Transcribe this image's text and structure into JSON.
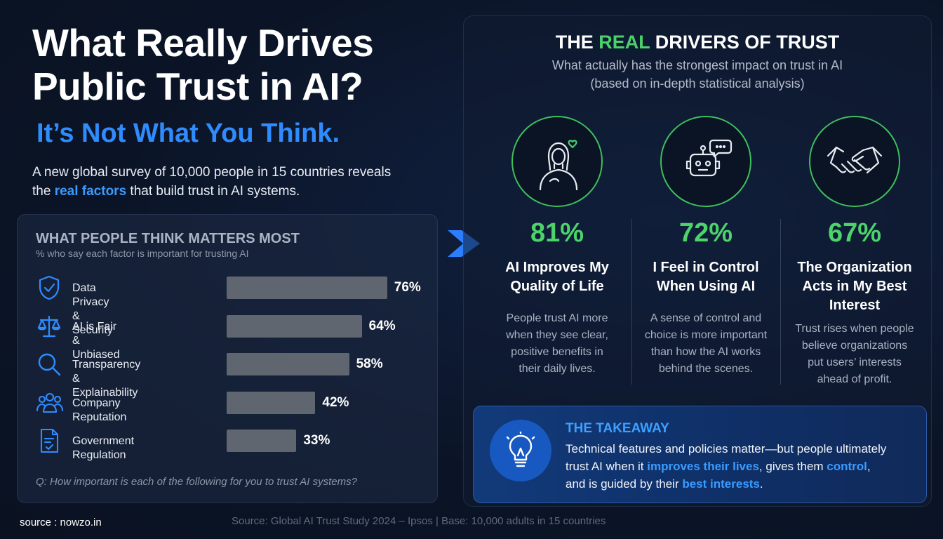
{
  "header": {
    "title_line1": "What Really Drives",
    "title_line2": "Public Trust in AI?",
    "subtitle": "It’s Not What You Think.",
    "intro_part1": "A new global survey of 10,000 people in 15 countries reveals",
    "intro_part2_pre": "the ",
    "intro_highlight": "real factors",
    "intro_part2_post": " that build trust in AI systems."
  },
  "perception_panel": {
    "title": "WHAT PEOPLE THINK MATTERS MOST",
    "description": "% who say each factor is important for trusting AI",
    "question": "Q: How important is each of the following for you to trust AI systems?"
  },
  "chart_data": {
    "type": "bar",
    "orientation": "horizontal",
    "categories": [
      "Data Privacy & Security",
      "AI is Fair & Unbiased",
      "Transparency & Explainability",
      "Company Reputation",
      "Government Regulation"
    ],
    "values": [
      76,
      64,
      58,
      42,
      33
    ],
    "value_labels": [
      "76%",
      "64%",
      "58%",
      "42%",
      "33%"
    ],
    "icons": [
      "shield-check-icon",
      "scales-icon",
      "magnifier-icon",
      "people-icon",
      "document-check-icon"
    ],
    "bar_color": "#5f6670",
    "xlim": [
      0,
      100
    ]
  },
  "drivers_panel": {
    "title_pre": "THE ",
    "title_highlight": "REAL",
    "title_post": " DRIVERS OF TRUST",
    "subtitle_line1": "What actually has the strongest impact on trust in AI",
    "subtitle_line2": "(based on in-depth statistical analysis)",
    "accent_color": "#4bd06a",
    "drivers": [
      {
        "stat": "81%",
        "label_line1": "AI Improves My",
        "label_line2": "Quality of Life",
        "label_line3": "",
        "desc": [
          "People trust AI more",
          "when they see clear,",
          "positive benefits in",
          "their daily lives."
        ],
        "icon": "person-heart-icon"
      },
      {
        "stat": "72%",
        "label_line1": "I Feel in Control",
        "label_line2": "When Using AI",
        "label_line3": "",
        "desc": [
          "A sense of control and",
          "choice is more important",
          "than how the AI works",
          "behind the scenes."
        ],
        "icon": "robot-chat-icon"
      },
      {
        "stat": "67%",
        "label_line1": "The Organization",
        "label_line2": "Acts in My Best",
        "label_line3": "Interest",
        "desc": [
          "Trust rises when people",
          "believe organizations",
          "put users’ interests",
          "ahead of profit."
        ],
        "icon": "handshake-icon"
      }
    ]
  },
  "takeaway": {
    "title": "THE TAKEAWAY",
    "line1": "Technical features and policies matter—but people ultimately",
    "line2_pre": "trust AI when it ",
    "line2_hl1": "improves their lives",
    "line2_mid": ", gives them ",
    "line2_hl2": "control",
    "line2_post": ",",
    "line3_pre": "and is guided by their ",
    "line3_hl": "best interests",
    "line3_post": ".",
    "icon": "lightbulb-icon"
  },
  "footer": {
    "source_overlay": "source : nowzo.in",
    "citation": "Source: Global AI Trust Study 2024 – Ipsos  |  Base: 10,000 adults in 15 countries"
  }
}
